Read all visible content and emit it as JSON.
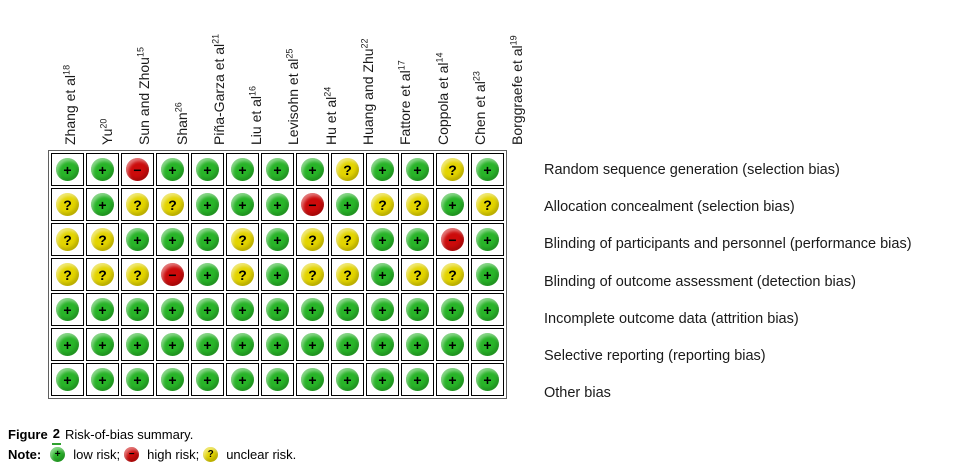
{
  "figure": {
    "caption": {
      "label": "Figure",
      "number": "2",
      "text": "Risk-of-bias summary."
    },
    "note": {
      "label": "Note:",
      "items": [
        {
          "risk": "low",
          "label": "low risk;"
        },
        {
          "risk": "high",
          "label": "high risk;"
        },
        {
          "risk": "unclear",
          "label": "unclear risk."
        }
      ]
    }
  },
  "colors": {
    "low": "#28b428",
    "high": "#cc0b0b",
    "unclear": "#e3d400",
    "symbol": "#000000"
  },
  "chart_data": {
    "type": "table",
    "title": "Risk-of-bias summary",
    "symbols": {
      "low": "+",
      "high": "−",
      "unclear": "?"
    },
    "columns": [
      {
        "study": "Zhang et al",
        "ref": "18"
      },
      {
        "study": "Yu",
        "ref": "20"
      },
      {
        "study": "Sun and Zhou",
        "ref": "15"
      },
      {
        "study": "Shan",
        "ref": "26"
      },
      {
        "study": "Piña-Garza et al",
        "ref": "21"
      },
      {
        "study": "Liu et al",
        "ref": "16"
      },
      {
        "study": "Levisohn et al",
        "ref": "25"
      },
      {
        "study": "Hu et al",
        "ref": "24"
      },
      {
        "study": "Huang and Zhu",
        "ref": "22"
      },
      {
        "study": "Fattore et al",
        "ref": "17"
      },
      {
        "study": "Coppola et al",
        "ref": "14"
      },
      {
        "study": "Chen et al",
        "ref": "23"
      },
      {
        "study": "Borggraefe et al",
        "ref": "19"
      }
    ],
    "rows": [
      "Random sequence generation (selection bias)",
      "Allocation concealment (selection bias)",
      "Blinding of participants and personnel (performance bias)",
      "Blinding of outcome assessment (detection bias)",
      "Incomplete outcome data (attrition bias)",
      "Selective reporting (reporting bias)",
      "Other bias"
    ],
    "matrix": [
      [
        "low",
        "low",
        "high",
        "low",
        "low",
        "low",
        "low",
        "low",
        "unclear",
        "low",
        "low",
        "unclear",
        "low"
      ],
      [
        "unclear",
        "low",
        "unclear",
        "unclear",
        "low",
        "low",
        "low",
        "high",
        "low",
        "unclear",
        "unclear",
        "low",
        "unclear"
      ],
      [
        "unclear",
        "unclear",
        "low",
        "low",
        "low",
        "unclear",
        "low",
        "unclear",
        "unclear",
        "low",
        "low",
        "high",
        "low"
      ],
      [
        "unclear",
        "unclear",
        "unclear",
        "high",
        "low",
        "unclear",
        "low",
        "unclear",
        "unclear",
        "low",
        "unclear",
        "unclear",
        "low"
      ],
      [
        "low",
        "low",
        "low",
        "low",
        "low",
        "low",
        "low",
        "low",
        "low",
        "low",
        "low",
        "low",
        "low"
      ],
      [
        "low",
        "low",
        "low",
        "low",
        "low",
        "low",
        "low",
        "low",
        "low",
        "low",
        "low",
        "low",
        "low"
      ],
      [
        "low",
        "low",
        "low",
        "low",
        "low",
        "low",
        "low",
        "low",
        "low",
        "low",
        "low",
        "low",
        "low"
      ]
    ]
  }
}
